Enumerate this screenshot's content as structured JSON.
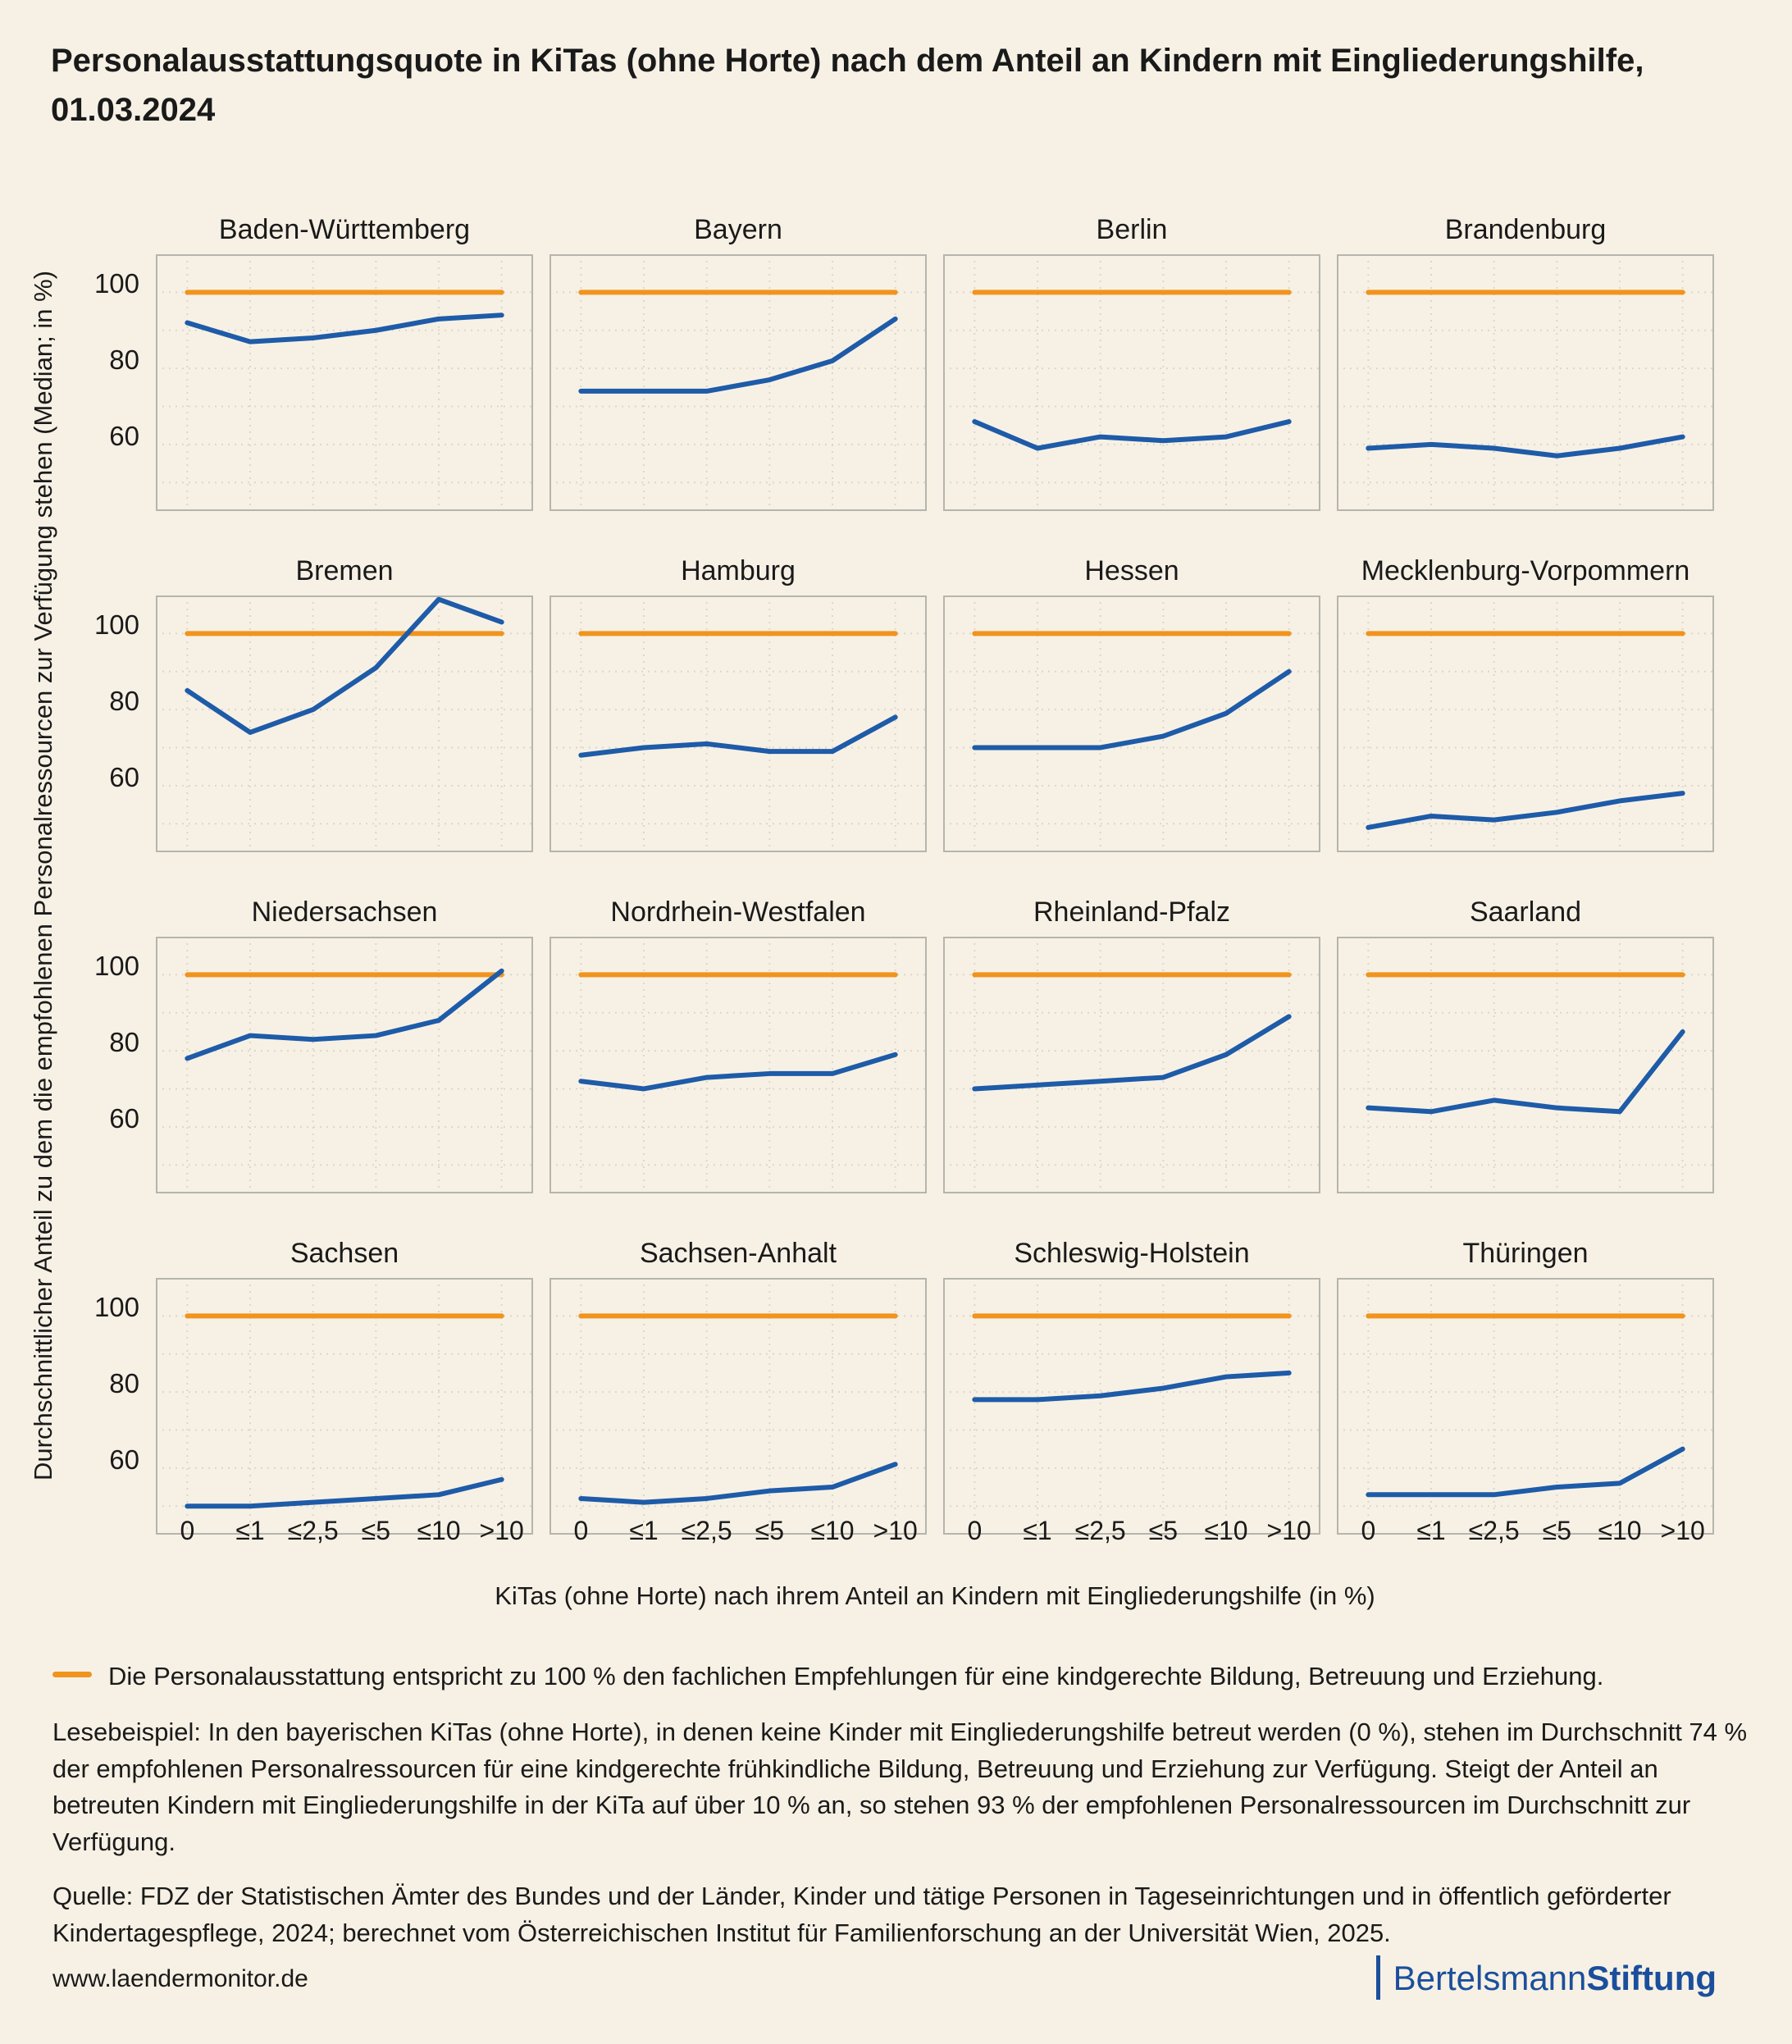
{
  "title": "Personalausstattungsquote in KiTas (ohne Horte) nach dem Anteil an Kindern mit Eingliederungshilfe, 01.03.2024",
  "y_axis_label": "Durchschnittlicher Anteil zu dem die empfohlenen Personalressourcen zur Verfügung stehen (Median; in %)",
  "x_axis_label": "KiTas (ohne Horte) nach ihrem Anteil an Kindern mit Eingliederungshilfe (in %)",
  "y_ticks": [
    100,
    80,
    60
  ],
  "colors": {
    "background": "#f7f1e5",
    "line": "#1e5ba8",
    "reference": "#f0941e",
    "grid": "#dbd7ca",
    "panel_border": "#b5b5ae",
    "text": "#1a1a1a",
    "logo": "#1b4f9c"
  },
  "chart_data": {
    "type": "line",
    "categories": [
      "0",
      "≤1",
      "≤2,5",
      "≤5",
      "≤10",
      ">10"
    ],
    "ylim": [
      42.5,
      110
    ],
    "grid_values": [
      50,
      60,
      70,
      80,
      90,
      100
    ],
    "grid_on": true,
    "reference_line": {
      "value": 100
    },
    "ylabel": "Durchschnittlicher Anteil zu dem die empfohlenen Personalressourcen zur Verfügung stehen (Median; in %)",
    "xlabel": "KiTas (ohne Horte) nach ihrem Anteil an Kindern mit Eingliederungshilfe (in %)",
    "panels": [
      {
        "name": "Baden-Württemberg",
        "values": [
          92,
          87,
          88,
          90,
          93,
          94
        ]
      },
      {
        "name": "Bayern",
        "values": [
          74,
          74,
          74,
          77,
          82,
          93
        ]
      },
      {
        "name": "Berlin",
        "values": [
          66,
          59,
          62,
          61,
          62,
          66
        ]
      },
      {
        "name": "Brandenburg",
        "values": [
          59,
          60,
          59,
          57,
          59,
          62
        ]
      },
      {
        "name": "Bremen",
        "values": [
          85,
          74,
          80,
          91,
          109,
          103
        ]
      },
      {
        "name": "Hamburg",
        "values": [
          68,
          70,
          71,
          69,
          69,
          78
        ]
      },
      {
        "name": "Hessen",
        "values": [
          70,
          70,
          70,
          73,
          79,
          90
        ]
      },
      {
        "name": "Mecklenburg-Vorpommern",
        "values": [
          49,
          52,
          51,
          53,
          56,
          58
        ]
      },
      {
        "name": "Niedersachsen",
        "values": [
          78,
          84,
          83,
          84,
          88,
          101
        ]
      },
      {
        "name": "Nordrhein-Westfalen",
        "values": [
          72,
          70,
          73,
          74,
          74,
          79
        ]
      },
      {
        "name": "Rheinland-Pfalz",
        "values": [
          70,
          71,
          72,
          73,
          79,
          89
        ]
      },
      {
        "name": "Saarland",
        "values": [
          65,
          64,
          67,
          65,
          64,
          85
        ]
      },
      {
        "name": "Sachsen",
        "values": [
          50,
          50,
          51,
          52,
          53,
          57
        ]
      },
      {
        "name": "Sachsen-Anhalt",
        "values": [
          52,
          51,
          52,
          54,
          55,
          61
        ]
      },
      {
        "name": "Schleswig-Holstein",
        "values": [
          78,
          78,
          79,
          81,
          84,
          85
        ]
      },
      {
        "name": "Thüringen",
        "values": [
          53,
          53,
          53,
          55,
          56,
          65
        ]
      }
    ]
  },
  "legend": {
    "label": "Die Personalausstattung entspricht zu 100 % den fachlichen Empfehlungen für eine kindgerechte Bildung, Betreuung und Erziehung."
  },
  "notes": {
    "lesebeispiel": "Lesebeispiel: In den bayerischen KiTas (ohne Horte), in denen keine Kinder mit Eingliederungshilfe betreut werden (0 %), stehen im Durchschnitt 74 % der empfohlenen Personalressourcen für eine kindgerechte frühkindliche Bildung, Betreuung und Erziehung zur Verfügung. Steigt der Anteil an betreuten Kindern mit Eingliederungshilfe in der KiTa auf über 10 % an, so stehen 93 % der empfohlenen Personalressourcen im Durchschnitt zur Verfügung.",
    "quelle": "Quelle: FDZ der Statistischen Ämter des Bundes und der Länder, Kinder und tätige Personen in Tageseinrichtungen und in öffentlich geförderter Kindertagespflege, 2024; berechnet vom Österreichischen Institut für Familienforschung an der Universität Wien, 2025.",
    "website": "www.laendermonitor.de"
  },
  "logo": {
    "name_regular": "Bertelsmann",
    "name_bold": "Stiftung"
  }
}
